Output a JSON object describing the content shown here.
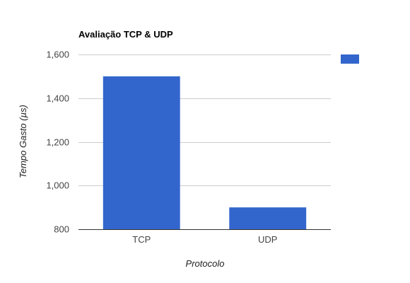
{
  "chart_data": {
    "type": "bar",
    "title": "Avaliação TCP & UDP",
    "xlabel": "Protocolo",
    "ylabel": "Tempo Gasto (µs)",
    "categories": [
      "TCP",
      "UDP"
    ],
    "series": [
      {
        "values": [
          1500,
          900
        ],
        "color": "#3366cc"
      }
    ],
    "ylim": [
      800,
      1600
    ],
    "yticks": [
      800,
      1000,
      1200,
      1400,
      1600
    ],
    "ytick_labels": [
      "800",
      "1,000",
      "1,200",
      "1,400",
      "1,600"
    ],
    "grid": true,
    "legend_position": "top-right"
  }
}
